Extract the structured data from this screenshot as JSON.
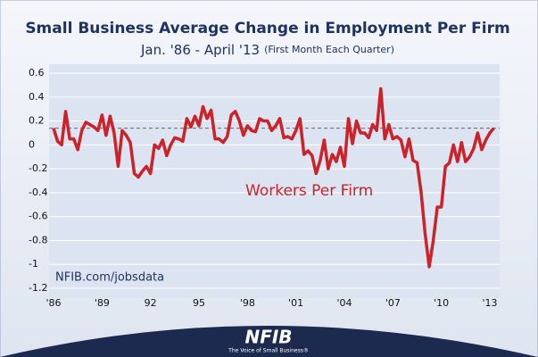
{
  "chart_data": {
    "type": "line",
    "title": "Small Business Average Change in Employment Per Firm",
    "subtitle": "Jan. '86 - April '13",
    "subtitle_note": "(First Month Each Quarter)",
    "annotation": "Workers Per Firm",
    "source": "NFIB.com/jobsdata",
    "brand": "NFIB",
    "brand_tagline": "The Voice of Small Business®",
    "categories": [
      "'86",
      null,
      null,
      null,
      null,
      null,
      null,
      null,
      null,
      null,
      null,
      null,
      "'89",
      null,
      null,
      null,
      null,
      null,
      null,
      null,
      null,
      null,
      null,
      null,
      "92",
      null,
      null,
      null,
      null,
      null,
      null,
      null,
      null,
      null,
      null,
      null,
      "95",
      null,
      null,
      null,
      null,
      null,
      null,
      null,
      null,
      null,
      null,
      null,
      "'98",
      null,
      null,
      null,
      null,
      null,
      null,
      null,
      null,
      null,
      null,
      null,
      "'01",
      null,
      null,
      null,
      null,
      null,
      null,
      null,
      null,
      null,
      null,
      null,
      "'04",
      null,
      null,
      null,
      null,
      null,
      null,
      null,
      null,
      null,
      null,
      null,
      "'07",
      null,
      null,
      null,
      null,
      null,
      null,
      null,
      null,
      null,
      null,
      null,
      "'10",
      null,
      null,
      null,
      null,
      null,
      null,
      null,
      null,
      null,
      null,
      null,
      "'13",
      null
    ],
    "series": [
      {
        "name": "Workers Per Firm",
        "color": "#cc2229",
        "values": [
          0.14,
          0.03,
          0.0,
          0.28,
          0.05,
          0.05,
          -0.04,
          0.12,
          0.19,
          0.17,
          0.15,
          0.12,
          0.25,
          0.08,
          0.24,
          0.1,
          -0.18,
          0.12,
          0.08,
          0.02,
          -0.24,
          -0.27,
          -0.22,
          -0.18,
          -0.24,
          0.0,
          -0.03,
          0.04,
          -0.09,
          0.0,
          0.06,
          0.05,
          0.03,
          0.22,
          0.15,
          0.24,
          0.16,
          0.32,
          0.22,
          0.29,
          0.05,
          0.05,
          0.02,
          0.07,
          0.25,
          0.28,
          0.2,
          0.08,
          0.16,
          0.12,
          0.11,
          0.22,
          0.2,
          0.2,
          0.12,
          0.16,
          0.22,
          0.06,
          0.07,
          0.05,
          0.12,
          0.22,
          -0.08,
          -0.05,
          -0.09,
          -0.24,
          -0.13,
          0.04,
          -0.2,
          -0.08,
          -0.14,
          -0.02,
          -0.18,
          0.22,
          0.01,
          0.2,
          0.1,
          0.1,
          0.06,
          0.17,
          0.12,
          0.47,
          0.05,
          0.17,
          0.05,
          0.07,
          0.04,
          -0.1,
          0.05,
          -0.13,
          -0.15,
          -0.4,
          -0.75,
          -1.02,
          -0.8,
          -0.52,
          -0.52,
          -0.18,
          -0.15,
          0.0,
          -0.14,
          0.02,
          -0.14,
          -0.1,
          -0.03,
          0.1,
          -0.04,
          0.04,
          0.1,
          0.14
        ]
      }
    ],
    "reference_line": 0.14,
    "ylim": [
      -1.2,
      0.6
    ],
    "yticks": [
      -1.2,
      -1,
      -0.8,
      -0.6,
      -0.4,
      -0.2,
      0,
      0.2,
      0.4,
      0.6
    ],
    "grid": true
  }
}
